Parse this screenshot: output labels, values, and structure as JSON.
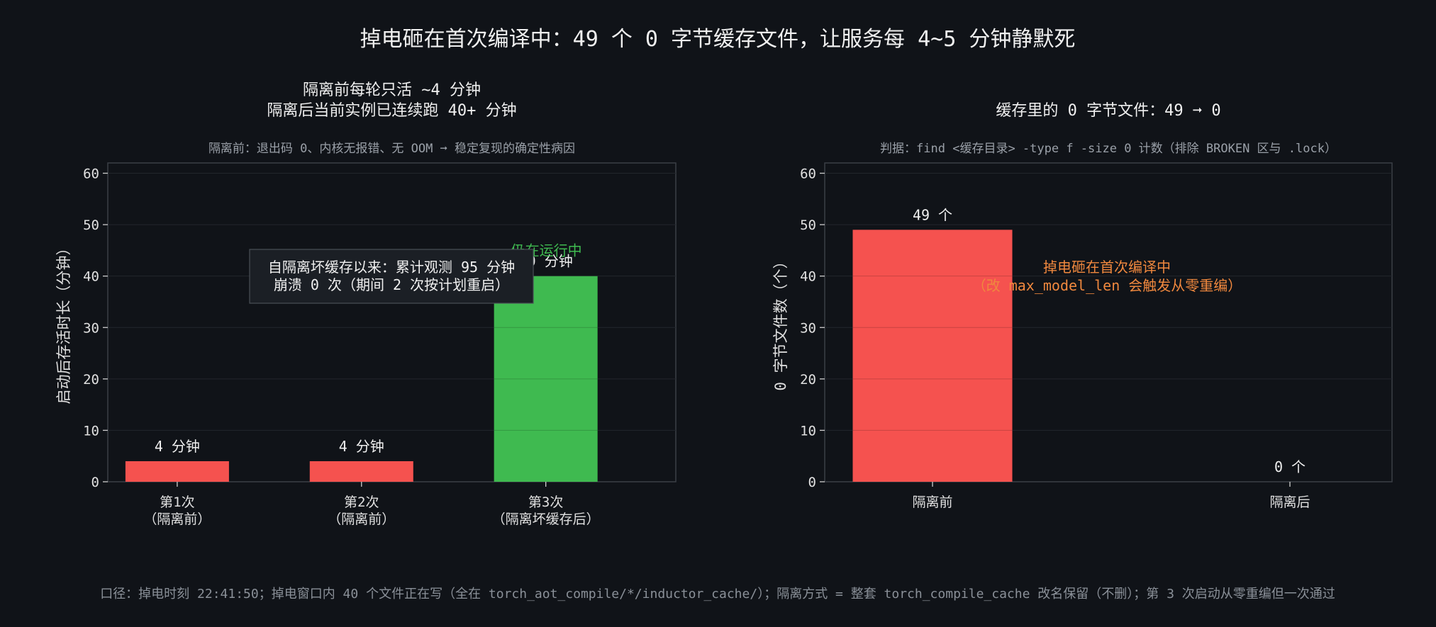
{
  "suptitle": "掉电砸在首次编译中：49 个 0 字节缓存文件，让服务每 4~5 分钟静默死",
  "footnote": "口径：掉电时刻 22:41:50；掉电窗口内 40 个文件正在写（全在 torch_aot_compile/*/inductor_cache/）；隔离方式 = 整套 torch_compile_cache 改名保留（不删）；第 3 次启动从零重编但一次通过",
  "colors": {
    "background": "#101318",
    "red": "#f5524f",
    "green": "#3fba50",
    "orange": "#f0883e",
    "grid": "#2a2f36"
  },
  "chart_data": [
    {
      "type": "bar",
      "title_lines": [
        "隔离前每轮只活 ~4 分钟",
        "隔离后当前实例已连续跑 40+ 分钟"
      ],
      "subtitle": "隔离前：退出码 0、内核无报错、无 OOM ➞ 稳定复现的确定性病因",
      "ylabel": "启动后存活时长（分钟）",
      "ylim": [
        0,
        62
      ],
      "yticks": [
        0,
        10,
        20,
        30,
        40,
        50,
        60
      ],
      "grid": true,
      "categories": [
        [
          "第1次",
          "（隔离前）"
        ],
        [
          "第2次",
          "（隔离前）"
        ],
        [
          "第3次",
          "（隔离坏缓存后）"
        ]
      ],
      "values": [
        4,
        4,
        40
      ],
      "bar_colors": [
        "#f5524f",
        "#f5524f",
        "#3fba50"
      ],
      "data_labels": [
        "4 分钟",
        "4 分钟",
        "40 分钟"
      ],
      "annotations": {
        "running": "仍在运行中",
        "box_lines": [
          "自隔离坏缓存以来：累计观测 95 分钟",
          "崩溃 0 次（期间 2 次按计划重启）"
        ]
      }
    },
    {
      "type": "bar",
      "title_lines": [
        "缓存里的 0 字节文件：49 ➞ 0"
      ],
      "subtitle": "判据：find <缓存目录> -type f -size 0 计数（排除 BROKEN 区与 .lock）",
      "ylabel": "0 字节文件数（个）",
      "ylim": [
        0,
        62
      ],
      "yticks": [
        0,
        10,
        20,
        30,
        40,
        50,
        60
      ],
      "grid": true,
      "categories": [
        [
          "隔离前"
        ],
        [
          "隔离后"
        ]
      ],
      "values": [
        49,
        0
      ],
      "bar_colors": [
        "#f5524f",
        "#f5524f"
      ],
      "data_labels": [
        "49 个",
        "0 个"
      ],
      "annotations": {
        "callout_lines": [
          "掉电砸在首次编译中",
          "（改 max_model_len 会触发从零重编）"
        ]
      }
    }
  ]
}
